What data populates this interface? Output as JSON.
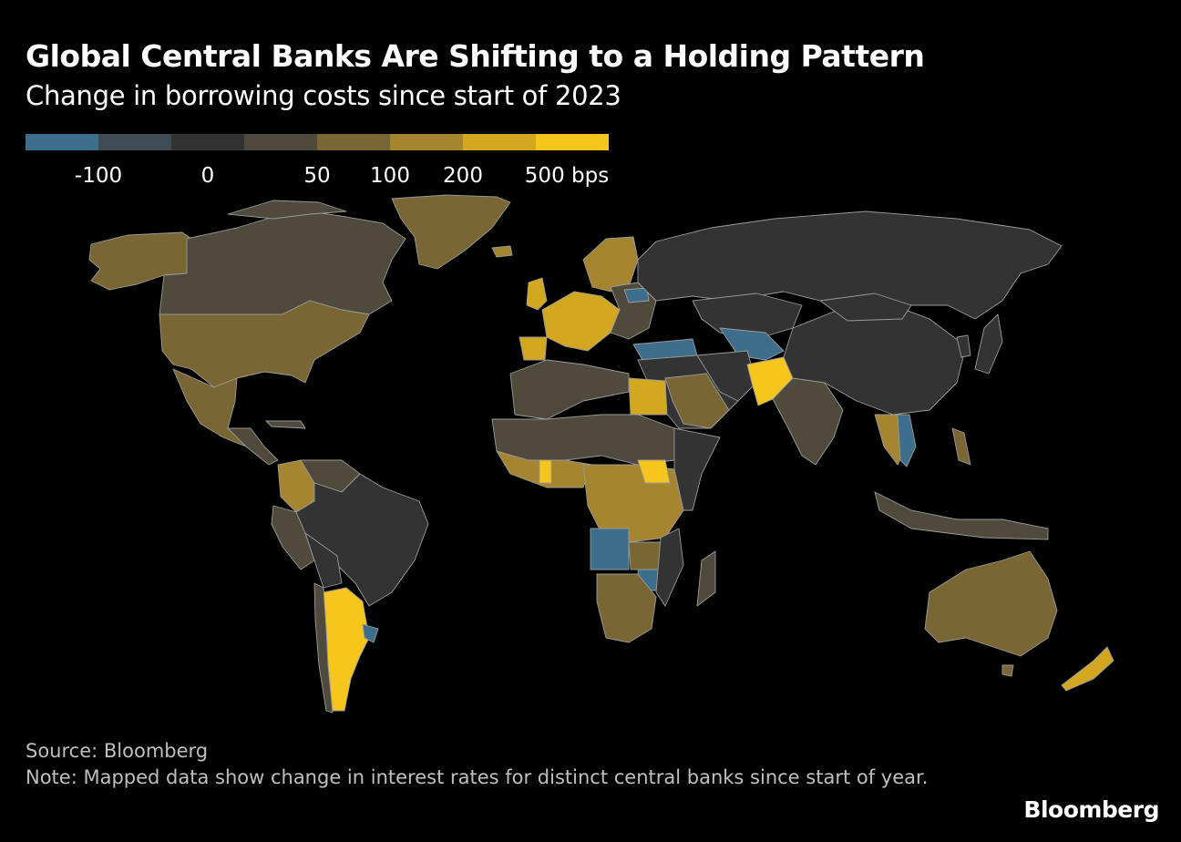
{
  "header": {
    "title": "Global Central Banks Are Shifting to a Holding Pattern",
    "subtitle": "Change in borrowing costs since start of 2023"
  },
  "legend": {
    "colors": [
      "#3d6e8c",
      "#3e4d55",
      "#333333",
      "#4f4a3c",
      "#7a6635",
      "#a5852f",
      "#d4a720",
      "#f7c61c"
    ],
    "labels": [
      "-100",
      "0",
      "50",
      "100",
      "200",
      "500 bps"
    ]
  },
  "map": {
    "scale_colors": {
      "neg_large": "#3d6e8c",
      "neg_small": "#3e4d55",
      "zero": "#333333",
      "low": "#4f4a3c",
      "mid": "#7a6635",
      "midhigh": "#a5852f",
      "high": "#d4a720",
      "very_high": "#f7c61c",
      "border": "#9a9a9a"
    }
  },
  "footer": {
    "source": "Source: Bloomberg",
    "note": "Note: Mapped data show change in interest rates for distinct central banks since start of year."
  },
  "brand": {
    "logo": "Bloomberg"
  }
}
